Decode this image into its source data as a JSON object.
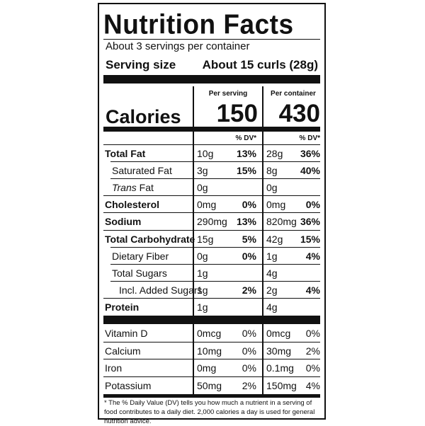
{
  "title": "Nutrition Facts",
  "servings_per_container": "About 3 servings per container",
  "serving_size": {
    "label": "Serving size",
    "value": "About 15 curls (28g)"
  },
  "columns": {
    "per_serving": "Per serving",
    "per_container": "Per container"
  },
  "calories": {
    "label": "Calories",
    "per_serving": "150",
    "per_container": "430"
  },
  "dv_header": "% DV*",
  "nutrients": [
    {
      "name": "Total Fat",
      "bold": true,
      "indent": 0,
      "serv_amt": "10g",
      "serv_dv": "13%",
      "cont_amt": "28g",
      "cont_dv": "36%",
      "dv_bold": true
    },
    {
      "name": "Saturated Fat",
      "bold": false,
      "indent": 1,
      "serv_amt": "3g",
      "serv_dv": "15%",
      "cont_amt": "8g",
      "cont_dv": "40%",
      "dv_bold": true
    },
    {
      "name_italic": "Trans",
      "name": " Fat",
      "bold": false,
      "indent": 1,
      "serv_amt": "0g",
      "serv_dv": "",
      "cont_amt": "0g",
      "cont_dv": "",
      "dv_bold": true
    },
    {
      "name": "Cholesterol",
      "bold": true,
      "indent": 0,
      "serv_amt": "0mg",
      "serv_dv": "0%",
      "cont_amt": "0mg",
      "cont_dv": "0%",
      "dv_bold": true
    },
    {
      "name": "Sodium",
      "bold": true,
      "indent": 0,
      "serv_amt": "290mg",
      "serv_dv": "13%",
      "cont_amt": "820mg",
      "cont_dv": "36%",
      "dv_bold": true
    },
    {
      "name": "Total Carbohydrate",
      "bold": true,
      "indent": 0,
      "serv_amt": "15g",
      "serv_dv": "5%",
      "cont_amt": "42g",
      "cont_dv": "15%",
      "dv_bold": true
    },
    {
      "name": "Dietary Fiber",
      "bold": false,
      "indent": 1,
      "serv_amt": "0g",
      "serv_dv": "0%",
      "cont_amt": "1g",
      "cont_dv": "4%",
      "dv_bold": true
    },
    {
      "name": "Total Sugars",
      "bold": false,
      "indent": 1,
      "serv_amt": "1g",
      "serv_dv": "",
      "cont_amt": "4g",
      "cont_dv": "",
      "dv_bold": true
    },
    {
      "name": "Incl. Added Sugars",
      "bold": false,
      "indent": 2,
      "serv_amt": "1g",
      "serv_dv": "2%",
      "cont_amt": "2g",
      "cont_dv": "4%",
      "dv_bold": true
    },
    {
      "name": "Protein",
      "bold": true,
      "indent": 0,
      "serv_amt": "1g",
      "serv_dv": "",
      "cont_amt": "4g",
      "cont_dv": "",
      "dv_bold": true
    }
  ],
  "vitamins": [
    {
      "name": "Vitamin D",
      "serv_amt": "0mcg",
      "serv_dv": "0%",
      "cont_amt": "0mcg",
      "cont_dv": "0%"
    },
    {
      "name": "Calcium",
      "serv_amt": "10mg",
      "serv_dv": "0%",
      "cont_amt": "30mg",
      "cont_dv": "2%"
    },
    {
      "name": "Iron",
      "serv_amt": "0mg",
      "serv_dv": "0%",
      "cont_amt": "0.1mg",
      "cont_dv": "0%"
    },
    {
      "name": "Potassium",
      "serv_amt": "50mg",
      "serv_dv": "2%",
      "cont_amt": "150mg",
      "cont_dv": "4%"
    }
  ],
  "footnote": "* The % Daily Value (DV) tells you how much a nutrient in a serving of food contributes to a daily diet. 2,000 calories a day is used for general nutrition advice."
}
